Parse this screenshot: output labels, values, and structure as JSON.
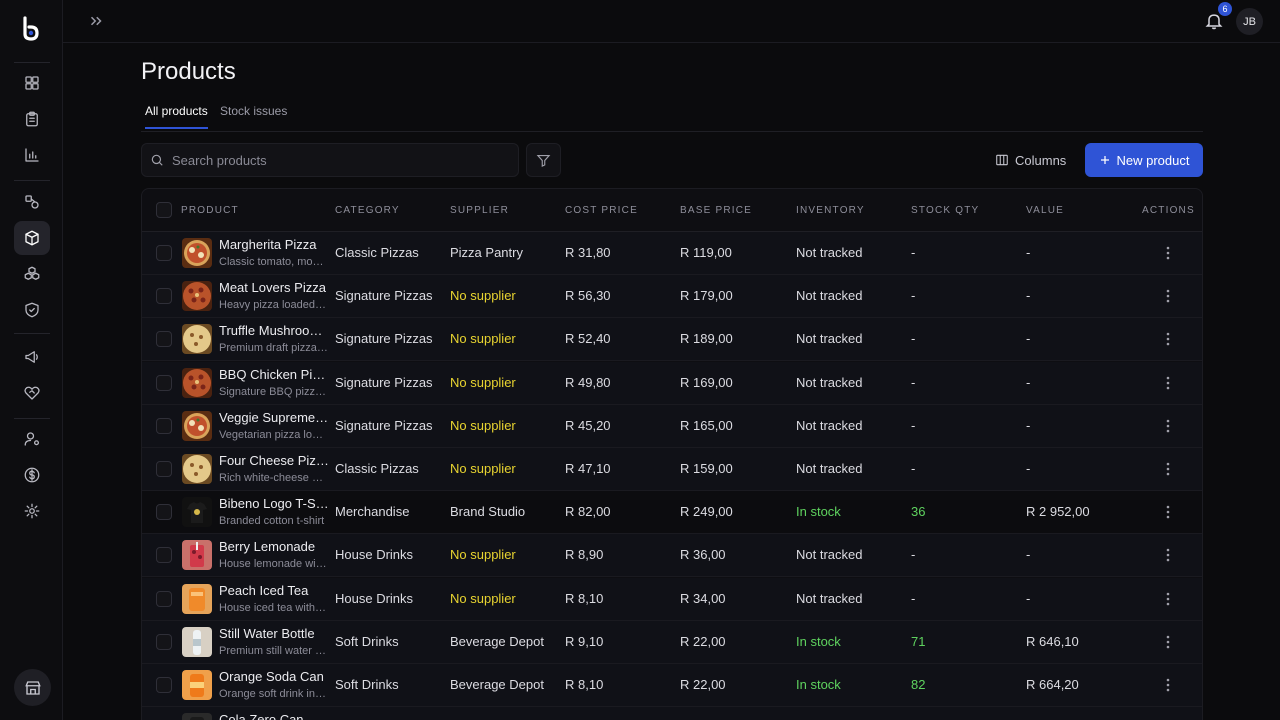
{
  "topbar": {
    "notification_count": "6",
    "avatar_initials": "JB"
  },
  "page": {
    "title": "Products"
  },
  "tabs": [
    {
      "label": "All products"
    },
    {
      "label": "Stock issues"
    }
  ],
  "toolbar": {
    "search_placeholder": "Search products",
    "columns_label": "Columns",
    "new_product_label": "New product"
  },
  "colors": {
    "accent": "#2f54d6",
    "in_stock": "#5fd35f",
    "no_supplier": "#e8d430"
  },
  "sidebar": {
    "icons": [
      "dashboard-icon",
      "clipboard-icon",
      "bar-chart-icon",
      "shapes-icon",
      "box-icon",
      "cubes-icon",
      "shield-icon",
      "megaphone-icon",
      "heart-handshake-icon",
      "user-settings-icon",
      "dollar-icon",
      "settings-icon"
    ],
    "active": "box-icon",
    "bottom_icon": "store-icon"
  },
  "table": {
    "headers": [
      "Product",
      "Category",
      "Supplier",
      "Cost price",
      "Base price",
      "Inventory",
      "Stock qty",
      "Value",
      "Actions"
    ],
    "rows": [
      {
        "name": "Margherita Pizza",
        "desc": "Classic tomato, mozzarella and basil",
        "category": "Classic Pizzas",
        "supplier": "Pizza Pantry",
        "cost": "R 31,80",
        "base": "R 119,00",
        "inventory": "Not tracked",
        "qty": "-",
        "value": "-",
        "thumb": "pizza"
      },
      {
        "name": "Meat Lovers Pizza",
        "desc": "Heavy pizza loaded with meats",
        "category": "Signature Pizzas",
        "supplier": "No supplier",
        "cost": "R 56,30",
        "base": "R 179,00",
        "inventory": "Not tracked",
        "qty": "-",
        "value": "-",
        "thumb": "pizza-red"
      },
      {
        "name": "Truffle Mushroom Pizza",
        "desc": "Premium draft pizza with truffle",
        "category": "Signature Pizzas",
        "supplier": "No supplier",
        "cost": "R 52,40",
        "base": "R 189,00",
        "inventory": "Not tracked",
        "qty": "-",
        "value": "-",
        "thumb": "pizza-light"
      },
      {
        "name": "BBQ Chicken Pizza",
        "desc": "Signature BBQ pizza with chicken",
        "category": "Signature Pizzas",
        "supplier": "No supplier",
        "cost": "R 49,80",
        "base": "R 169,00",
        "inventory": "Not tracked",
        "qty": "-",
        "value": "-",
        "thumb": "pizza-red"
      },
      {
        "name": "Veggie Supreme Pizza",
        "desc": "Vegetarian pizza loaded with veg",
        "category": "Signature Pizzas",
        "supplier": "No supplier",
        "cost": "R 45,20",
        "base": "R 165,00",
        "inventory": "Not tracked",
        "qty": "-",
        "value": "-",
        "thumb": "pizza"
      },
      {
        "name": "Four Cheese Pizza",
        "desc": "Rich white-cheese pizza",
        "category": "Classic Pizzas",
        "supplier": "No supplier",
        "cost": "R 47,10",
        "base": "R 159,00",
        "inventory": "Not tracked",
        "qty": "-",
        "value": "-",
        "thumb": "pizza-light"
      },
      {
        "name": "Bibeno Logo T-Shirt",
        "desc": "Branded cotton t-shirt",
        "category": "Merchandise",
        "supplier": "Brand Studio",
        "cost": "R 82,00",
        "base": "R 249,00",
        "inventory": "In stock",
        "qty": "36",
        "value": "R 2 952,00",
        "thumb": "shirt"
      },
      {
        "name": "Berry Lemonade",
        "desc": "House lemonade with berries",
        "category": "House Drinks",
        "supplier": "No supplier",
        "cost": "R 8,90",
        "base": "R 36,00",
        "inventory": "Not tracked",
        "qty": "-",
        "value": "-",
        "thumb": "berry"
      },
      {
        "name": "Peach Iced Tea",
        "desc": "House iced tea with peach",
        "category": "House Drinks",
        "supplier": "No supplier",
        "cost": "R 8,10",
        "base": "R 34,00",
        "inventory": "Not tracked",
        "qty": "-",
        "value": "-",
        "thumb": "peach"
      },
      {
        "name": "Still Water Bottle",
        "desc": "Premium still water bottle",
        "category": "Soft Drinks",
        "supplier": "Beverage Depot",
        "cost": "R 9,10",
        "base": "R 22,00",
        "inventory": "In stock",
        "qty": "71",
        "value": "R 646,10",
        "thumb": "water"
      },
      {
        "name": "Orange Soda Can",
        "desc": "Orange soft drink in a can",
        "category": "Soft Drinks",
        "supplier": "Beverage Depot",
        "cost": "R 8,10",
        "base": "R 22,00",
        "inventory": "In stock",
        "qty": "82",
        "value": "R 664,20",
        "thumb": "orange"
      },
      {
        "name": "Cola Zero Can",
        "desc": "",
        "category": "",
        "supplier": "",
        "cost": "",
        "base": "",
        "inventory": "",
        "qty": "",
        "value": "",
        "thumb": "cola"
      }
    ]
  }
}
